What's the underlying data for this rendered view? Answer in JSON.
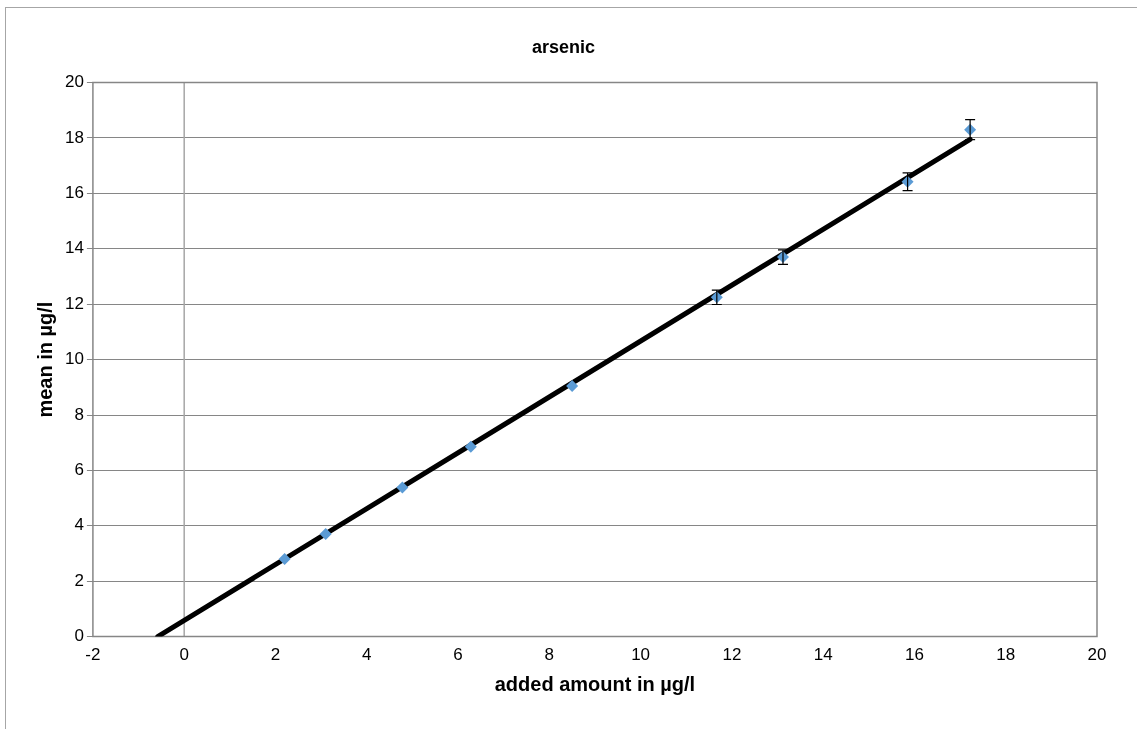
{
  "chart_data": {
    "type": "scatter",
    "title": "arsenic",
    "xlabel": "added amount in µg/l",
    "ylabel": "mean in µg/l",
    "xlim": [
      -2,
      20
    ],
    "xticks": [
      -2,
      0,
      2,
      4,
      6,
      8,
      10,
      12,
      14,
      16,
      18,
      20
    ],
    "ylim": [
      0,
      20
    ],
    "yticks": [
      0,
      2,
      4,
      6,
      8,
      10,
      12,
      14,
      16,
      18,
      20
    ],
    "grid": "y",
    "legend": false,
    "ref_lines": [
      {
        "axis": "x",
        "value": 0,
        "color": "#a6a6a6"
      }
    ],
    "series": [
      {
        "type": "line",
        "color": "#000000",
        "x": [
          -0.58,
          17.22
        ],
        "values": [
          0,
          17.95
        ],
        "marker": "none",
        "line_style": "solid"
      },
      {
        "type": "scatter",
        "color": "#5b9bd5",
        "marker": "diamond",
        "x": [
          2.2,
          3.1,
          4.78,
          6.28,
          8.5,
          11.67,
          13.12,
          15.85,
          17.22
        ],
        "values": [
          2.8,
          3.7,
          5.38,
          6.85,
          9.05,
          12.25,
          13.7,
          16.42,
          18.3
        ],
        "errors": [
          null,
          null,
          null,
          null,
          null,
          0.26,
          0.26,
          0.32,
          0.36
        ]
      }
    ]
  }
}
